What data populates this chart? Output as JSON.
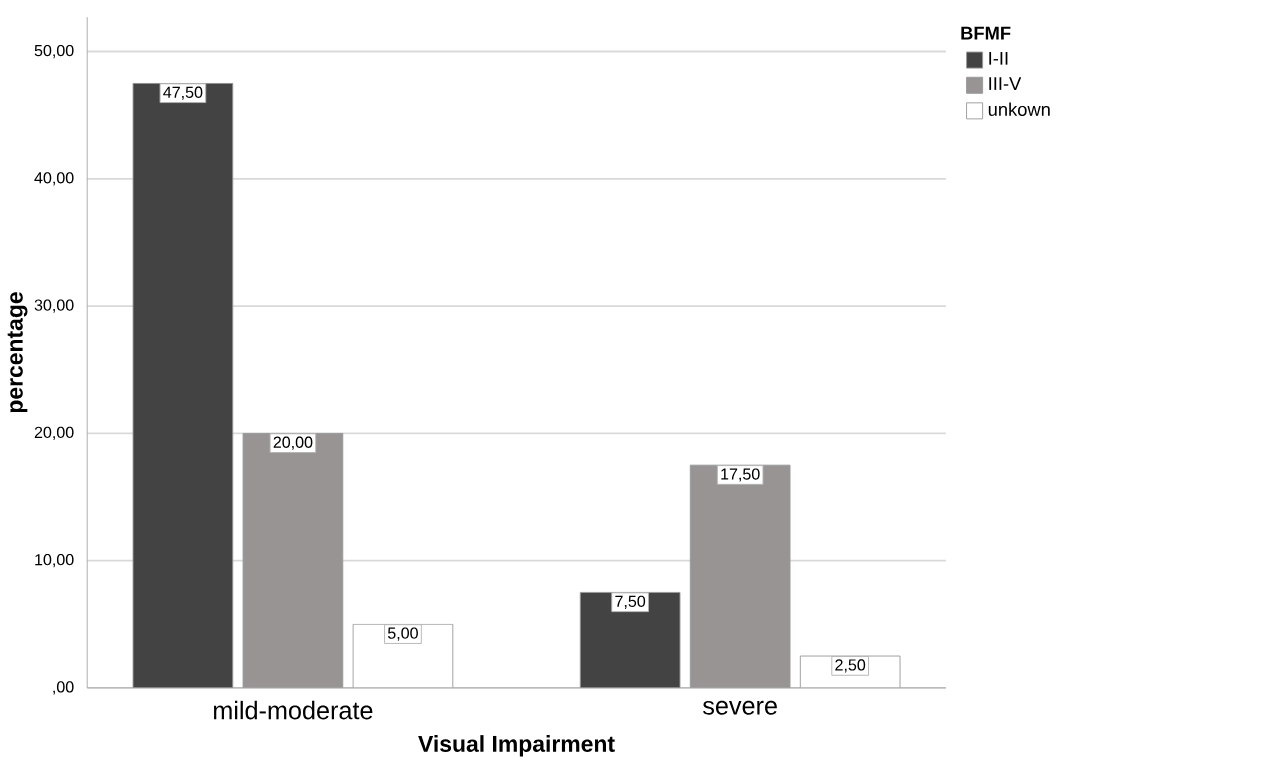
{
  "chart_data": {
    "type": "bar",
    "xlabel": "Visual Impairment",
    "ylabel": "percentage",
    "legend_title": "BFMF",
    "categories": [
      "mild-moderate",
      "severe"
    ],
    "series": [
      {
        "name": "I-II",
        "color": "#434343",
        "values": [
          47.5,
          7.5
        ],
        "value_labels": [
          "47,50",
          "7,50"
        ]
      },
      {
        "name": "III-V",
        "color": "#989494",
        "values": [
          20,
          17.5
        ],
        "value_labels": [
          "20,00",
          "17,50"
        ]
      },
      {
        "name": "unkown",
        "color": "#ffffff",
        "values": [
          5,
          2.5
        ],
        "value_labels": [
          "5,00",
          "2,50"
        ]
      }
    ],
    "ylim": [
      0,
      52.7
    ],
    "yticks": [
      {
        "value": 0,
        "label": ",00"
      },
      {
        "value": 10,
        "label": "10,00"
      },
      {
        "value": 20,
        "label": "20,00"
      },
      {
        "value": 30,
        "label": "30,00"
      },
      {
        "value": 40,
        "label": "40,00"
      },
      {
        "value": 50,
        "label": "50,00"
      }
    ],
    "grid": "y",
    "legend": "top right"
  }
}
